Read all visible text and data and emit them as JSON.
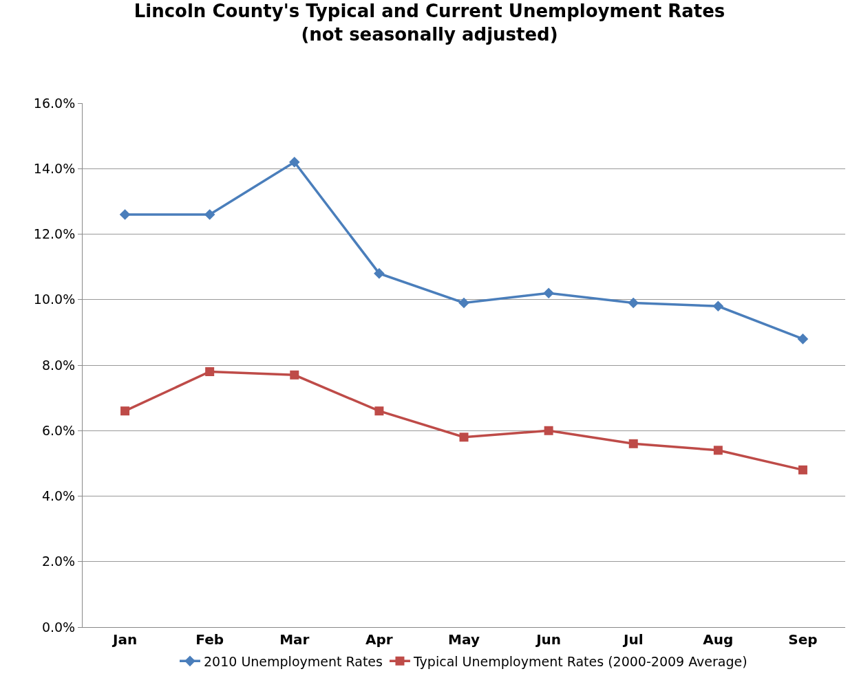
{
  "chart_data": {
    "type": "line",
    "title": "Lincoln County's Typical and Current Unemployment Rates\n(not seasonally adjusted)",
    "categories": [
      "Jan",
      "Feb",
      "Mar",
      "Apr",
      "May",
      "Jun",
      "Jul",
      "Aug",
      "Sep"
    ],
    "series": [
      {
        "name": "2010 Unemployment Rates",
        "color": "#4a7ebb",
        "marker": "diamond",
        "values": [
          12.6,
          12.6,
          14.2,
          10.8,
          9.9,
          10.2,
          9.9,
          9.8,
          8.8
        ]
      },
      {
        "name": "Typical Unemployment Rates (2000-2009 Average)",
        "color": "#be4b48",
        "marker": "square",
        "values": [
          6.6,
          7.8,
          7.7,
          6.6,
          5.8,
          6.0,
          5.6,
          5.4,
          4.8
        ]
      }
    ],
    "ylim": [
      0,
      16
    ],
    "yticks": [
      {
        "value": 0,
        "label": "0.0%"
      },
      {
        "value": 2,
        "label": "2.0%"
      },
      {
        "value": 4,
        "label": "4.0%"
      },
      {
        "value": 6,
        "label": "6.0%"
      },
      {
        "value": 8,
        "label": "8.0%"
      },
      {
        "value": 10,
        "label": "10.0%"
      },
      {
        "value": 12,
        "label": "12.0%"
      },
      {
        "value": 14,
        "label": "14.0%"
      },
      {
        "value": 16,
        "label": "16.0%"
      }
    ],
    "grid": "y",
    "legend": "bottom",
    "line_style": "solid"
  }
}
